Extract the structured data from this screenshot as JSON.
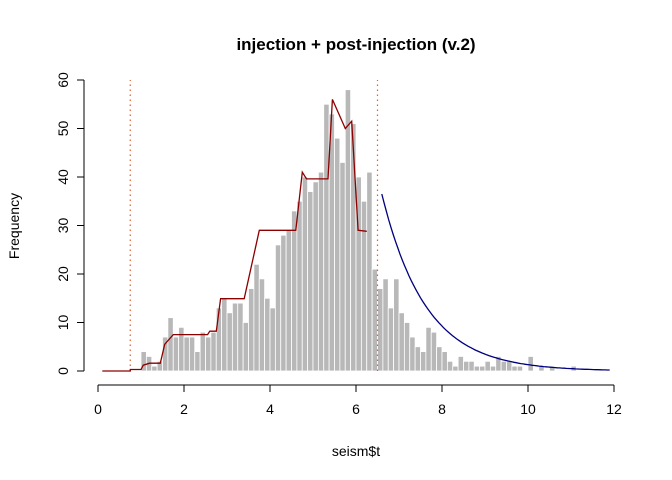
{
  "chart_data": {
    "type": "bar",
    "title": "injection + post-injection (v.2)",
    "xlabel": "seism$t",
    "ylabel": "Frequency",
    "xlim": [
      0,
      12
    ],
    "ylim": [
      0,
      60
    ],
    "x_ticks": [
      "0",
      "2",
      "4",
      "6",
      "8",
      "10",
      "12"
    ],
    "y_ticks": [
      "0",
      "10",
      "20",
      "30",
      "40",
      "50",
      "60"
    ],
    "bin_width": 0.125,
    "bins": [
      {
        "start": 1.0,
        "count": 4
      },
      {
        "start": 1.125,
        "count": 3
      },
      {
        "start": 1.25,
        "count": 1
      },
      {
        "start": 1.375,
        "count": 2
      },
      {
        "start": 1.5,
        "count": 7
      },
      {
        "start": 1.625,
        "count": 11
      },
      {
        "start": 1.75,
        "count": 7
      },
      {
        "start": 1.875,
        "count": 9
      },
      {
        "start": 2.0,
        "count": 7
      },
      {
        "start": 2.125,
        "count": 7
      },
      {
        "start": 2.25,
        "count": 4
      },
      {
        "start": 2.375,
        "count": 8
      },
      {
        "start": 2.5,
        "count": 7
      },
      {
        "start": 2.625,
        "count": 8
      },
      {
        "start": 2.75,
        "count": 13
      },
      {
        "start": 2.875,
        "count": 15
      },
      {
        "start": 3.0,
        "count": 12
      },
      {
        "start": 3.125,
        "count": 14
      },
      {
        "start": 3.25,
        "count": 14
      },
      {
        "start": 3.375,
        "count": 10
      },
      {
        "start": 3.5,
        "count": 17
      },
      {
        "start": 3.625,
        "count": 22
      },
      {
        "start": 3.75,
        "count": 19
      },
      {
        "start": 3.875,
        "count": 15
      },
      {
        "start": 4.0,
        "count": 13
      },
      {
        "start": 4.125,
        "count": 26
      },
      {
        "start": 4.25,
        "count": 28
      },
      {
        "start": 4.375,
        "count": 29
      },
      {
        "start": 4.5,
        "count": 33
      },
      {
        "start": 4.625,
        "count": 35
      },
      {
        "start": 4.75,
        "count": 40
      },
      {
        "start": 4.875,
        "count": 37
      },
      {
        "start": 5.0,
        "count": 39
      },
      {
        "start": 5.125,
        "count": 41
      },
      {
        "start": 5.25,
        "count": 55
      },
      {
        "start": 5.375,
        "count": 53
      },
      {
        "start": 5.5,
        "count": 48
      },
      {
        "start": 5.625,
        "count": 43
      },
      {
        "start": 5.75,
        "count": 58
      },
      {
        "start": 5.875,
        "count": 51
      },
      {
        "start": 6.0,
        "count": 40
      },
      {
        "start": 6.125,
        "count": 35
      },
      {
        "start": 6.25,
        "count": 41
      },
      {
        "start": 6.375,
        "count": 21
      },
      {
        "start": 6.5,
        "count": 17
      },
      {
        "start": 6.625,
        "count": 19
      },
      {
        "start": 6.75,
        "count": 13
      },
      {
        "start": 6.875,
        "count": 19
      },
      {
        "start": 7.0,
        "count": 12
      },
      {
        "start": 7.125,
        "count": 10
      },
      {
        "start": 7.25,
        "count": 7
      },
      {
        "start": 7.375,
        "count": 5
      },
      {
        "start": 7.5,
        "count": 4
      },
      {
        "start": 7.625,
        "count": 9
      },
      {
        "start": 7.75,
        "count": 8
      },
      {
        "start": 7.875,
        "count": 5
      },
      {
        "start": 8.0,
        "count": 4
      },
      {
        "start": 8.125,
        "count": 2
      },
      {
        "start": 8.25,
        "count": 1
      },
      {
        "start": 8.375,
        "count": 3
      },
      {
        "start": 8.5,
        "count": 2
      },
      {
        "start": 8.625,
        "count": 2
      },
      {
        "start": 8.75,
        "count": 1
      },
      {
        "start": 8.875,
        "count": 1
      },
      {
        "start": 9.0,
        "count": 2
      },
      {
        "start": 9.125,
        "count": 1
      },
      {
        "start": 9.25,
        "count": 3
      },
      {
        "start": 9.375,
        "count": 2
      },
      {
        "start": 9.5,
        "count": 2
      },
      {
        "start": 9.625,
        "count": 1
      },
      {
        "start": 9.75,
        "count": 1
      },
      {
        "start": 10.0,
        "count": 3
      },
      {
        "start": 10.25,
        "count": 1
      },
      {
        "start": 10.5,
        "count": 1
      },
      {
        "start": 11.0,
        "count": 1
      }
    ],
    "step_line": {
      "color": "#8b0000",
      "points": [
        [
          0.1,
          0
        ],
        [
          0.75,
          0
        ],
        [
          0.75,
          0.3
        ],
        [
          1.0,
          0.3
        ],
        [
          1.05,
          1.2
        ],
        [
          1.2,
          1.6
        ],
        [
          1.45,
          1.6
        ],
        [
          1.55,
          5.5
        ],
        [
          1.75,
          7.5
        ],
        [
          2.55,
          7.5
        ],
        [
          2.6,
          8.2
        ],
        [
          2.75,
          8.2
        ],
        [
          2.85,
          14.9
        ],
        [
          3.4,
          14.9
        ],
        [
          3.75,
          29.0
        ],
        [
          4.5,
          29.0
        ],
        [
          4.6,
          29.0
        ],
        [
          4.75,
          41.0
        ],
        [
          4.85,
          39.6
        ],
        [
          5.35,
          39.6
        ],
        [
          5.45,
          56.0
        ],
        [
          5.75,
          50.0
        ],
        [
          5.9,
          51.5
        ],
        [
          6.05,
          29.0
        ],
        [
          6.25,
          28.8
        ]
      ]
    },
    "decay_curve": {
      "color": "#00007f",
      "x_start": 6.6,
      "x_end": 11.9,
      "y0": 36.5,
      "rate": 0.98
    },
    "reference_lines": {
      "color": "#e06030",
      "x": [
        0.75,
        6.5
      ]
    },
    "grid": false,
    "legend": "none"
  }
}
